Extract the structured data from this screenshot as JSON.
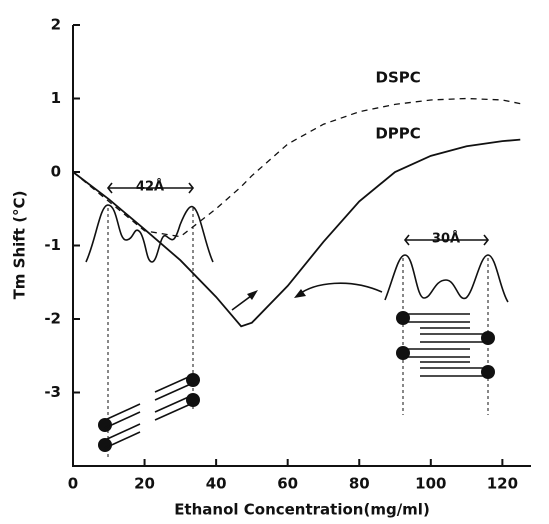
{
  "chart_data": {
    "type": "line",
    "x_label": "Ethanol Concentration(mg/ml)",
    "y_label": "Tm Shift (°C)",
    "x": [
      0,
      10,
      20,
      30,
      40,
      47,
      50,
      60,
      70,
      80,
      90,
      100,
      110,
      120,
      125
    ],
    "series": [
      {
        "name": "DSPC",
        "color": "#111111",
        "dashed": true,
        "values": [
          0,
          -0.4,
          -0.8,
          -0.88,
          -0.5,
          -0.2,
          -0.05,
          0.38,
          0.65,
          0.82,
          0.92,
          0.98,
          1.0,
          0.98,
          0.93
        ]
      },
      {
        "name": "DPPC",
        "color": "#111111",
        "dashed": false,
        "values": [
          0,
          -0.37,
          -0.78,
          -1.2,
          -1.7,
          -2.1,
          -2.05,
          -1.55,
          -0.95,
          -0.4,
          0,
          0.22,
          0.35,
          0.42,
          0.44
        ]
      }
    ],
    "annotations": [
      "42Å",
      "30Å"
    ],
    "xlim": [
      0,
      128
    ],
    "ylim": [
      -4,
      2
    ],
    "xticks": [
      0,
      20,
      40,
      60,
      80,
      100,
      120
    ],
    "yticks": [
      -3,
      -2,
      -1,
      0,
      1,
      2
    ]
  }
}
